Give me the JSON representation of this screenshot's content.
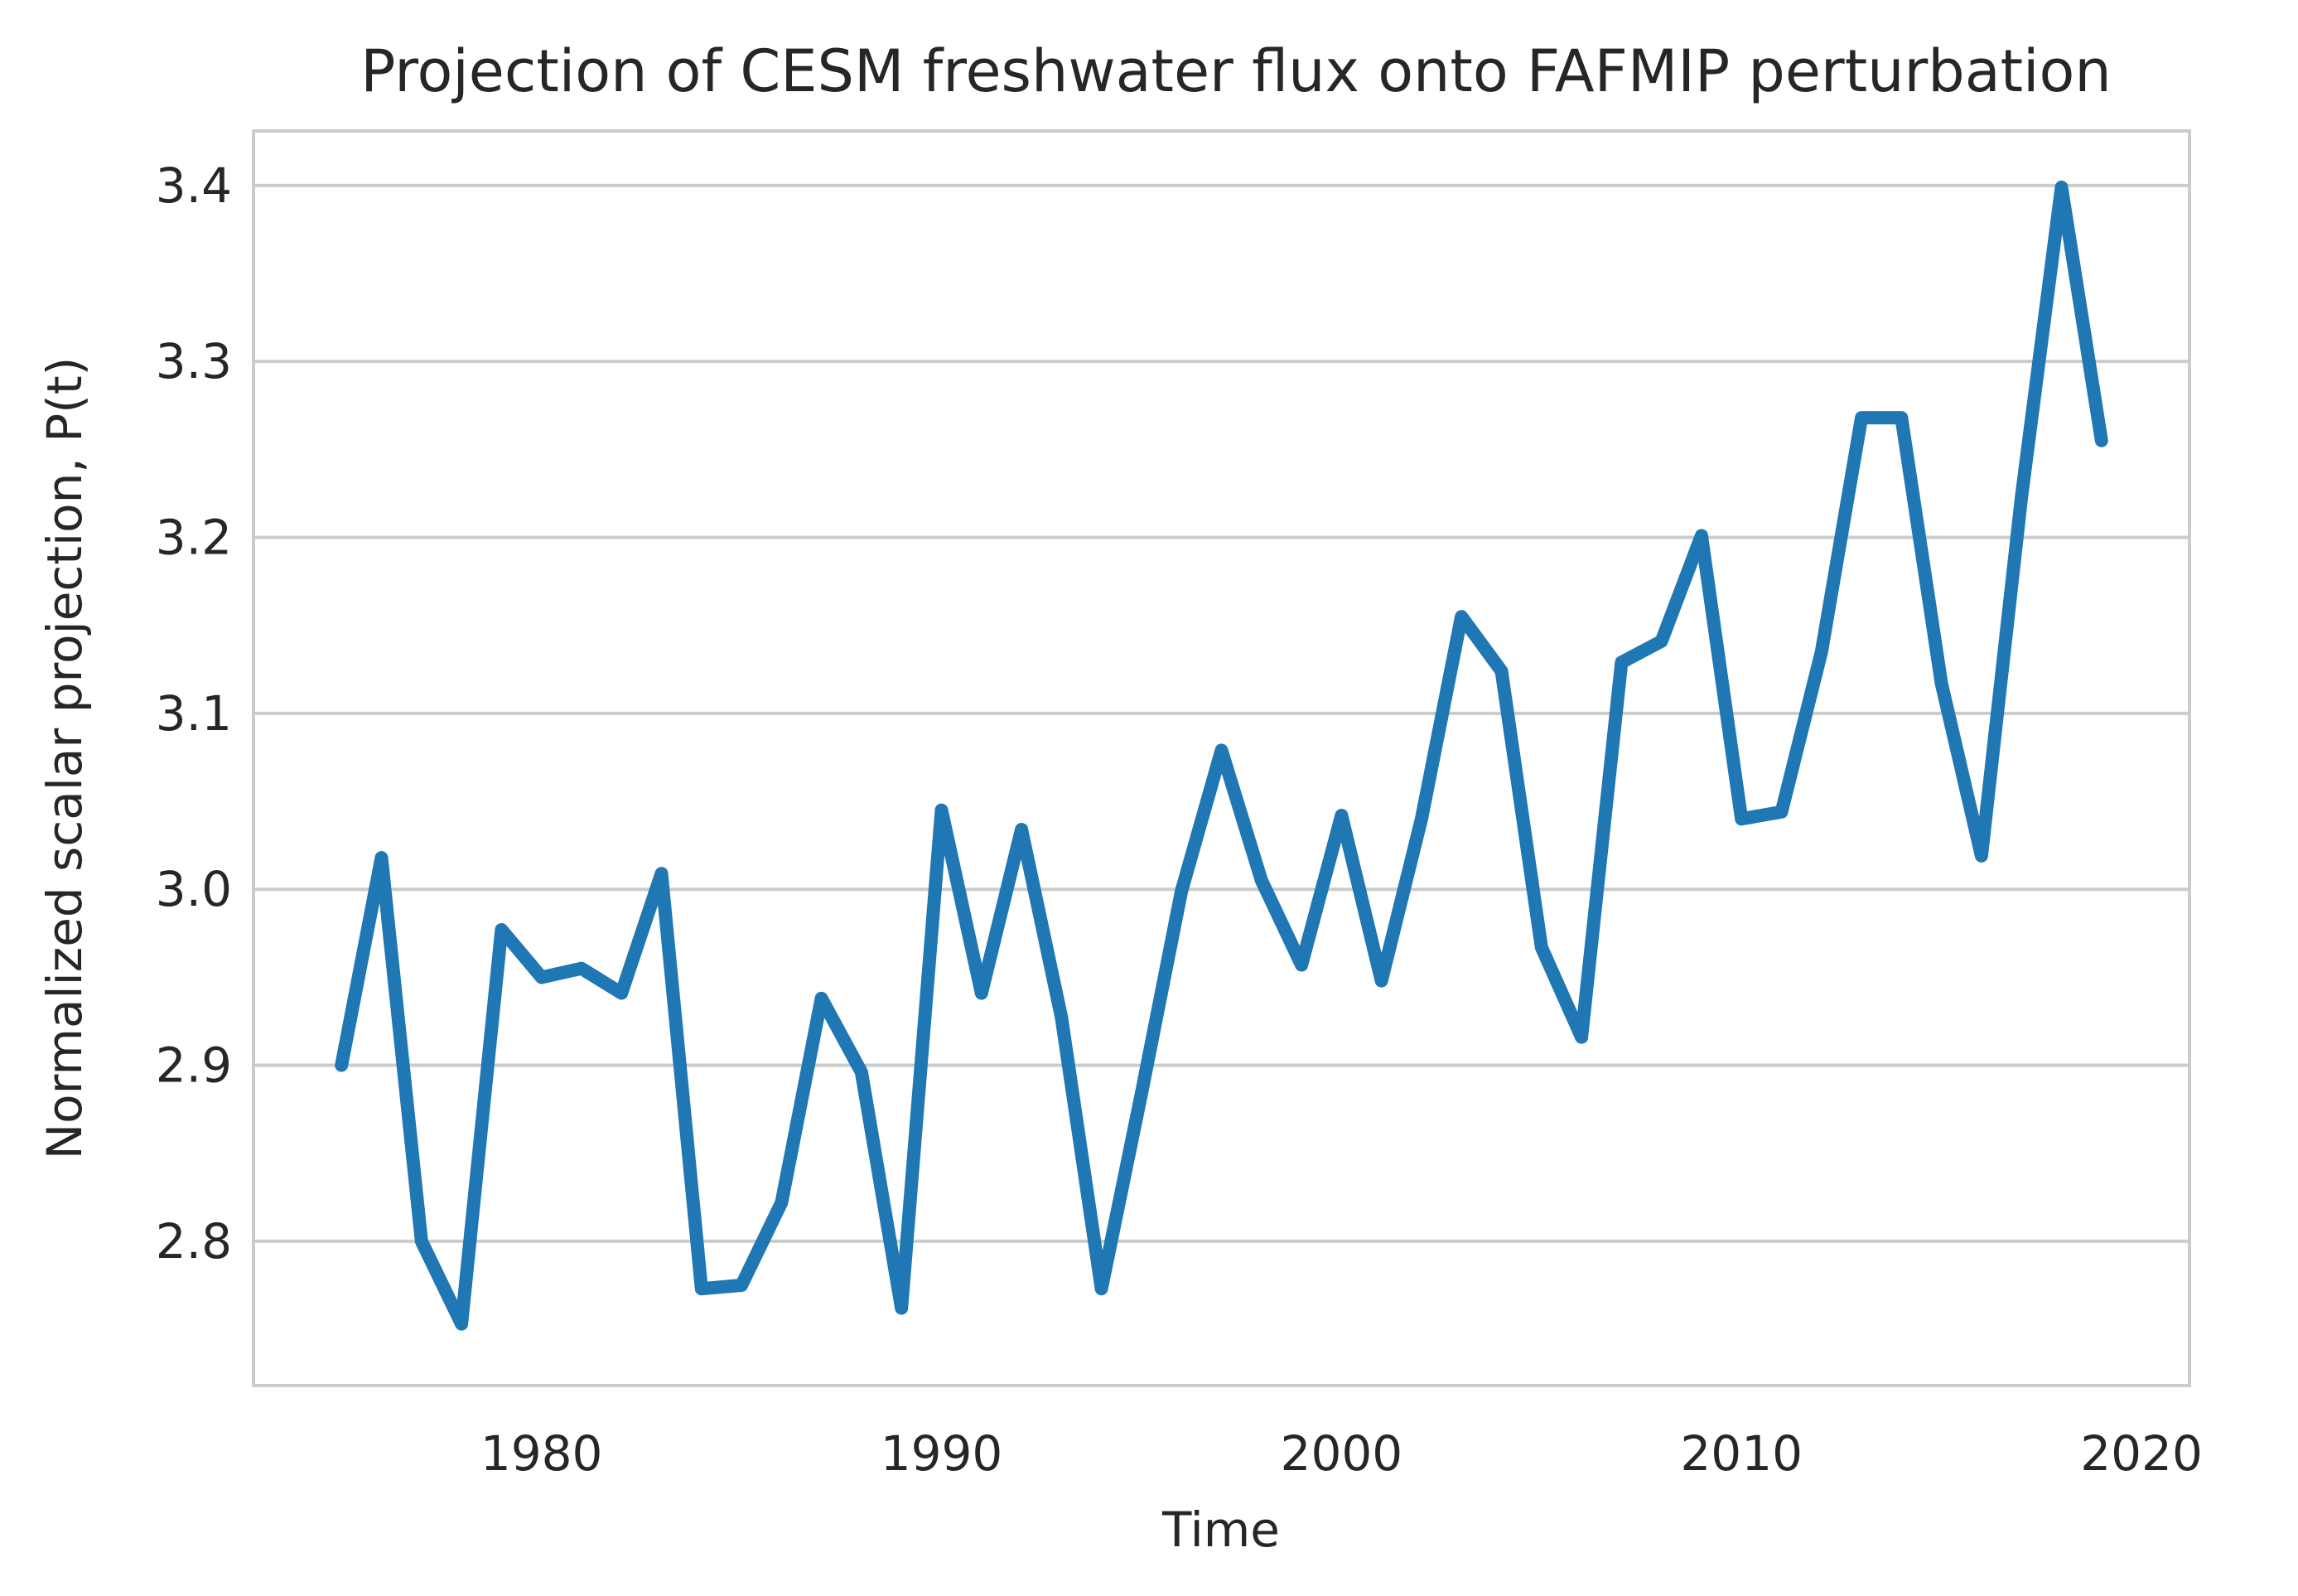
{
  "chart_data": {
    "type": "line",
    "title": "Projection of CESM freshwater flux onto FAFMIP perturbation",
    "xlabel": "Time",
    "ylabel": "Normalized scalar projection, P(t)",
    "xlim": [
      1972.8,
      2021.2
    ],
    "ylim": [
      2.718,
      3.431
    ],
    "xticks": [
      1980,
      1990,
      2000,
      2010,
      2020
    ],
    "yticks": [
      2.8,
      2.9,
      3.0,
      3.1,
      3.2,
      3.3,
      3.4
    ],
    "xtick_labels": [
      "1980",
      "1990",
      "2000",
      "2010",
      "2020"
    ],
    "ytick_labels": [
      "2.8",
      "2.9",
      "3.0",
      "3.1",
      "3.2",
      "3.3",
      "3.4"
    ],
    "grid": "horizontal",
    "legend": "none",
    "series": [
      {
        "color": "#1f77b4",
        "x": [
          1975,
          1976,
          1977,
          1978,
          1979,
          1980,
          1981,
          1982,
          1983,
          1984,
          1985,
          1986,
          1987,
          1988,
          1989,
          1990,
          1991,
          1992,
          1993,
          1994,
          1995,
          1996,
          1997,
          1998,
          1999,
          2000,
          2001,
          2002,
          2003,
          2004,
          2005,
          2006,
          2007,
          2008,
          2009,
          2010,
          2011,
          2012,
          2013,
          2014,
          2015,
          2016,
          2017,
          2018,
          2019
        ],
        "values": [
          2.9,
          3.018,
          2.8,
          2.753,
          2.977,
          2.95,
          2.955,
          2.941,
          3.009,
          2.773,
          2.775,
          2.822,
          2.938,
          2.896,
          2.762,
          3.045,
          2.941,
          3.034,
          2.927,
          2.773,
          2.884,
          2.999,
          3.079,
          3.005,
          2.957,
          3.042,
          2.948,
          3.04,
          3.155,
          3.124,
          2.967,
          2.916,
          3.129,
          3.141,
          3.201,
          3.04,
          3.044,
          3.135,
          3.268,
          3.268,
          3.117,
          3.019,
          3.223,
          3.399,
          3.255
        ]
      }
    ]
  },
  "colors": {
    "line": "#1f77b4",
    "grid": "#cccccc",
    "frame": "#cccccc",
    "text": "#262626",
    "background": "#ffffff"
  }
}
